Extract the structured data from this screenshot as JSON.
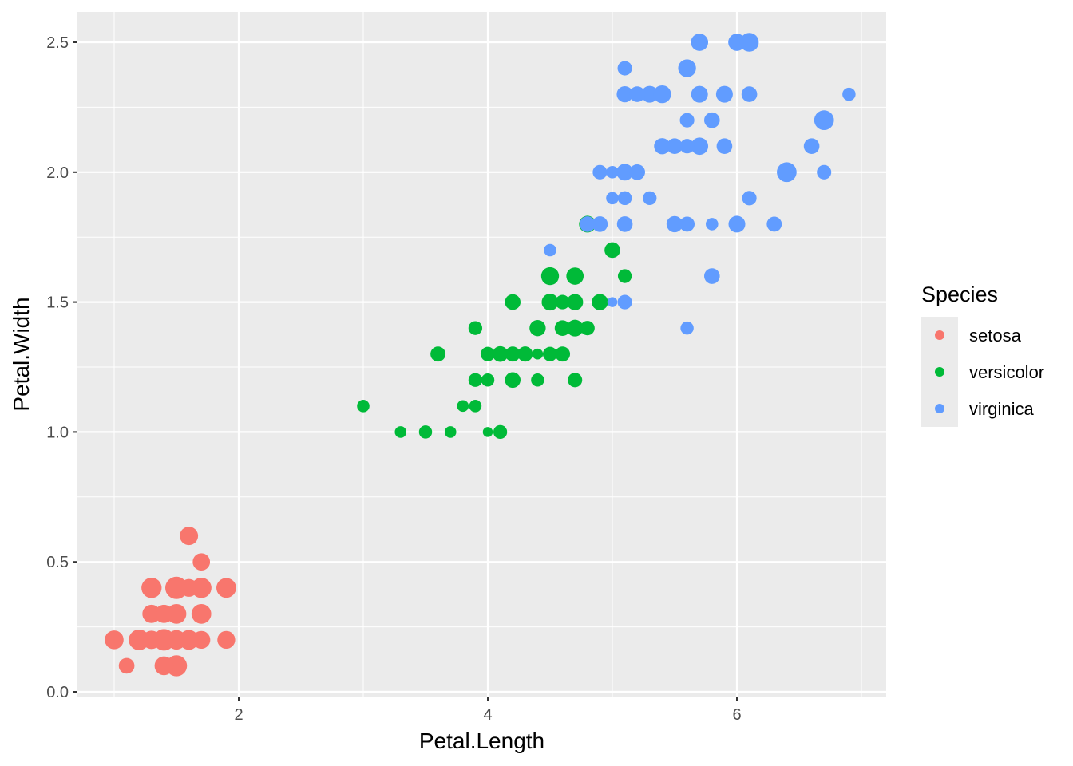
{
  "chart_data": {
    "type": "scatter",
    "xlabel": "Petal.Length",
    "ylabel": "Petal.Width",
    "xlim": [
      0.7,
      7.2
    ],
    "ylim": [
      -0.02,
      2.64
    ],
    "xticks": [
      2,
      4,
      6
    ],
    "xtick_labels": [
      "2",
      "4",
      "6"
    ],
    "yticks": [
      0,
      0.5,
      1,
      1.5,
      2,
      2.5
    ],
    "ytick_labels": [
      "0.0",
      "0.5",
      "1.0",
      "1.5",
      "2.0",
      "2.5"
    ],
    "grid": true,
    "legend": {
      "title": "Species",
      "placement": "right"
    },
    "size_variable": "Sepal.Width",
    "point_fields": [
      "Petal.Length",
      "Petal.Width",
      "Sepal.Width"
    ],
    "series": [
      {
        "name": "setosa",
        "color": "#F8766D",
        "points": [
          [
            1.4,
            0.2,
            3.5
          ],
          [
            1.4,
            0.2,
            3.0
          ],
          [
            1.3,
            0.2,
            3.2
          ],
          [
            1.5,
            0.2,
            3.1
          ],
          [
            1.4,
            0.2,
            3.6
          ],
          [
            1.7,
            0.4,
            3.9
          ],
          [
            1.4,
            0.3,
            3.4
          ],
          [
            1.5,
            0.2,
            3.4
          ],
          [
            1.4,
            0.2,
            2.9
          ],
          [
            1.5,
            0.1,
            3.1
          ],
          [
            1.5,
            0.2,
            3.7
          ],
          [
            1.6,
            0.2,
            3.4
          ],
          [
            1.4,
            0.1,
            3.0
          ],
          [
            1.1,
            0.1,
            3.0
          ],
          [
            1.2,
            0.2,
            4.0
          ],
          [
            1.5,
            0.4,
            4.4
          ],
          [
            1.3,
            0.4,
            3.9
          ],
          [
            1.4,
            0.3,
            3.5
          ],
          [
            1.7,
            0.3,
            3.8
          ],
          [
            1.5,
            0.3,
            3.8
          ],
          [
            1.7,
            0.2,
            3.4
          ],
          [
            1.5,
            0.4,
            3.7
          ],
          [
            1.0,
            0.2,
            3.6
          ],
          [
            1.7,
            0.5,
            3.3
          ],
          [
            1.9,
            0.2,
            3.4
          ],
          [
            1.6,
            0.2,
            3.0
          ],
          [
            1.6,
            0.4,
            3.4
          ],
          [
            1.5,
            0.2,
            3.5
          ],
          [
            1.4,
            0.2,
            3.4
          ],
          [
            1.6,
            0.2,
            3.2
          ],
          [
            1.6,
            0.2,
            3.1
          ],
          [
            1.5,
            0.4,
            3.4
          ],
          [
            1.5,
            0.1,
            4.1
          ],
          [
            1.4,
            0.2,
            4.2
          ],
          [
            1.5,
            0.2,
            3.1
          ],
          [
            1.2,
            0.2,
            3.2
          ],
          [
            1.3,
            0.2,
            3.5
          ],
          [
            1.4,
            0.1,
            3.6
          ],
          [
            1.3,
            0.2,
            3.0
          ],
          [
            1.5,
            0.2,
            3.4
          ],
          [
            1.3,
            0.3,
            3.5
          ],
          [
            1.3,
            0.3,
            2.3
          ],
          [
            1.3,
            0.2,
            3.2
          ],
          [
            1.6,
            0.6,
            3.5
          ],
          [
            1.9,
            0.4,
            3.8
          ],
          [
            1.4,
            0.3,
            3.0
          ],
          [
            1.6,
            0.2,
            3.8
          ],
          [
            1.4,
            0.2,
            3.2
          ],
          [
            1.5,
            0.2,
            3.7
          ],
          [
            1.4,
            0.2,
            3.3
          ]
        ]
      },
      {
        "name": "versicolor",
        "color": "#00BA38",
        "points": [
          [
            4.7,
            1.4,
            3.2
          ],
          [
            4.5,
            1.5,
            3.2
          ],
          [
            4.9,
            1.5,
            3.1
          ],
          [
            4.0,
            1.3,
            2.3
          ],
          [
            4.6,
            1.5,
            2.8
          ],
          [
            4.5,
            1.3,
            2.8
          ],
          [
            4.7,
            1.6,
            3.3
          ],
          [
            3.3,
            1.0,
            2.4
          ],
          [
            4.6,
            1.3,
            2.9
          ],
          [
            3.9,
            1.4,
            2.7
          ],
          [
            3.5,
            1.0,
            2.0
          ],
          [
            4.2,
            1.5,
            3.0
          ],
          [
            4.0,
            1.0,
            2.2
          ],
          [
            4.7,
            1.4,
            2.9
          ],
          [
            3.6,
            1.3,
            2.9
          ],
          [
            4.4,
            1.4,
            3.1
          ],
          [
            4.5,
            1.5,
            3.0
          ],
          [
            4.1,
            1.0,
            2.7
          ],
          [
            4.5,
            1.5,
            2.2
          ],
          [
            3.9,
            1.1,
            2.5
          ],
          [
            4.8,
            1.8,
            3.2
          ],
          [
            4.0,
            1.3,
            2.8
          ],
          [
            4.9,
            1.5,
            2.5
          ],
          [
            4.7,
            1.2,
            2.8
          ],
          [
            4.3,
            1.3,
            2.9
          ],
          [
            4.4,
            1.4,
            3.0
          ],
          [
            4.8,
            1.4,
            2.8
          ],
          [
            5.0,
            1.7,
            3.0
          ],
          [
            4.5,
            1.5,
            2.9
          ],
          [
            3.5,
            1.0,
            2.6
          ],
          [
            3.8,
            1.1,
            2.4
          ],
          [
            3.7,
            1.0,
            2.4
          ],
          [
            3.9,
            1.2,
            2.7
          ],
          [
            5.1,
            1.6,
            2.7
          ],
          [
            4.5,
            1.5,
            3.0
          ],
          [
            4.5,
            1.6,
            3.4
          ],
          [
            4.7,
            1.5,
            3.1
          ],
          [
            4.4,
            1.3,
            2.3
          ],
          [
            4.1,
            1.3,
            3.0
          ],
          [
            4.0,
            1.3,
            2.5
          ],
          [
            4.4,
            1.2,
            2.6
          ],
          [
            4.6,
            1.4,
            3.0
          ],
          [
            4.0,
            1.2,
            2.6
          ],
          [
            3.3,
            1.0,
            2.3
          ],
          [
            4.2,
            1.3,
            2.7
          ],
          [
            4.2,
            1.2,
            3.0
          ],
          [
            4.2,
            1.3,
            2.9
          ],
          [
            4.3,
            1.3,
            2.9
          ],
          [
            3.0,
            1.1,
            2.5
          ],
          [
            4.1,
            1.3,
            2.8
          ]
        ]
      },
      {
        "name": "virginica",
        "color": "#619CFF",
        "points": [
          [
            6.0,
            2.5,
            3.3
          ],
          [
            5.1,
            1.9,
            2.7
          ],
          [
            5.9,
            2.1,
            3.0
          ],
          [
            5.6,
            1.8,
            2.9
          ],
          [
            5.8,
            2.2,
            3.0
          ],
          [
            6.6,
            2.1,
            3.0
          ],
          [
            4.5,
            1.7,
            2.5
          ],
          [
            6.3,
            1.8,
            2.9
          ],
          [
            5.8,
            1.8,
            2.5
          ],
          [
            6.1,
            2.5,
            3.6
          ],
          [
            5.1,
            2.0,
            3.2
          ],
          [
            5.3,
            1.9,
            2.7
          ],
          [
            5.5,
            2.1,
            3.0
          ],
          [
            5.0,
            2.0,
            2.5
          ],
          [
            5.1,
            2.4,
            2.8
          ],
          [
            5.3,
            2.3,
            3.2
          ],
          [
            5.5,
            1.8,
            3.0
          ],
          [
            6.7,
            2.2,
            3.8
          ],
          [
            6.9,
            2.3,
            2.6
          ],
          [
            5.0,
            1.5,
            2.2
          ],
          [
            5.7,
            2.3,
            3.2
          ],
          [
            4.9,
            2.0,
            2.8
          ],
          [
            6.7,
            2.0,
            2.8
          ],
          [
            4.9,
            1.8,
            2.7
          ],
          [
            5.7,
            2.1,
            3.3
          ],
          [
            6.0,
            1.8,
            3.2
          ],
          [
            4.8,
            1.8,
            2.8
          ],
          [
            4.9,
            1.8,
            3.0
          ],
          [
            5.6,
            2.1,
            2.8
          ],
          [
            5.8,
            1.6,
            3.0
          ],
          [
            6.1,
            1.9,
            2.8
          ],
          [
            6.4,
            2.0,
            3.8
          ],
          [
            5.6,
            2.2,
            2.8
          ],
          [
            5.1,
            1.5,
            2.8
          ],
          [
            5.6,
            1.4,
            2.6
          ],
          [
            6.1,
            2.3,
            3.0
          ],
          [
            5.6,
            2.4,
            3.4
          ],
          [
            5.5,
            1.8,
            3.1
          ],
          [
            4.8,
            1.8,
            3.0
          ],
          [
            5.4,
            2.1,
            3.1
          ],
          [
            5.6,
            2.4,
            3.1
          ],
          [
            5.1,
            2.3,
            3.1
          ],
          [
            5.1,
            1.9,
            2.7
          ],
          [
            5.9,
            2.3,
            3.2
          ],
          [
            5.7,
            2.5,
            3.3
          ],
          [
            5.2,
            2.3,
            3.0
          ],
          [
            5.0,
            1.9,
            2.5
          ],
          [
            5.2,
            2.0,
            3.0
          ],
          [
            5.4,
            2.3,
            3.4
          ],
          [
            5.1,
            1.8,
            3.0
          ]
        ]
      }
    ]
  }
}
